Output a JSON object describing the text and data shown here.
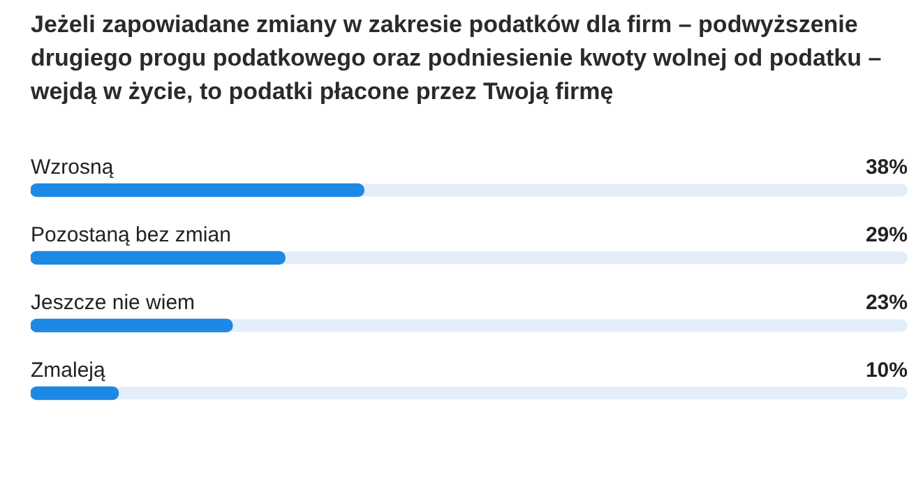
{
  "chart_data": {
    "type": "bar",
    "orientation": "horizontal",
    "title": "Jeżeli zapowiadane zmiany w zakresie podatków dla firm – podwyższenie drugiego progu podatkowego oraz podniesienie kwoty wolnej od podatku – wejdą w życie, to podatki płacone przez Twoją firmę",
    "categories": [
      "Wzrosną",
      "Pozostaną bez zmian",
      "Jeszcze nie wiem",
      "Zmaleją"
    ],
    "values": [
      38,
      29,
      23,
      10
    ],
    "value_labels": [
      "38%",
      "29%",
      "23%",
      "10%"
    ],
    "color": "#1e88e5",
    "xlim": [
      0,
      100
    ]
  }
}
